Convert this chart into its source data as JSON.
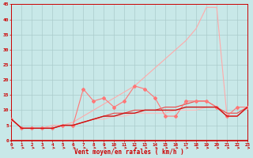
{
  "x": [
    0,
    1,
    2,
    3,
    4,
    5,
    6,
    7,
    8,
    9,
    10,
    11,
    12,
    13,
    14,
    15,
    16,
    17,
    18,
    19,
    20,
    21,
    22,
    23
  ],
  "line_smooth1": [
    7,
    4,
    4,
    4,
    4,
    5,
    5,
    6,
    7,
    7,
    8,
    8,
    9,
    9,
    9,
    9,
    10,
    10,
    10,
    11,
    11,
    8,
    8,
    11
  ],
  "line_smooth2": [
    7,
    4,
    4,
    4,
    4,
    5,
    5,
    6,
    7,
    8,
    8,
    9,
    9,
    10,
    10,
    10,
    10,
    11,
    11,
    11,
    11,
    8,
    8,
    11
  ],
  "line_smooth3": [
    7,
    4,
    4,
    4,
    4,
    5,
    5,
    6,
    7,
    8,
    9,
    9,
    10,
    10,
    10,
    11,
    11,
    12,
    13,
    13,
    11,
    9,
    9,
    11
  ],
  "line_zigzag": [
    7,
    4,
    4,
    4,
    4,
    5,
    5,
    17,
    13,
    14,
    11,
    13,
    18,
    17,
    14,
    8,
    8,
    13,
    13,
    13,
    11,
    8,
    11,
    11
  ],
  "line_peak": [
    7,
    4,
    4,
    4,
    5,
    5,
    6,
    8,
    10,
    12,
    14,
    16,
    18,
    21,
    24,
    27,
    30,
    33,
    37,
    44,
    44,
    8,
    8,
    11
  ],
  "xlim": [
    0,
    23
  ],
  "ylim": [
    0,
    45
  ],
  "yticks": [
    0,
    5,
    10,
    15,
    20,
    25,
    30,
    35,
    40,
    45
  ],
  "xlabel": "Vent moyen/en rafales ( km/h )",
  "bg_color": "#c8e8e8",
  "grid_color": "#aacccc",
  "color_light_salmon": "#ffaaaa",
  "color_salmon": "#ff7777",
  "color_dark_red": "#cc1111",
  "color_medium_red": "#ee4444",
  "color_pink": "#ffbbbb",
  "label_color": "#cc0000",
  "tick_color": "#cc0000"
}
